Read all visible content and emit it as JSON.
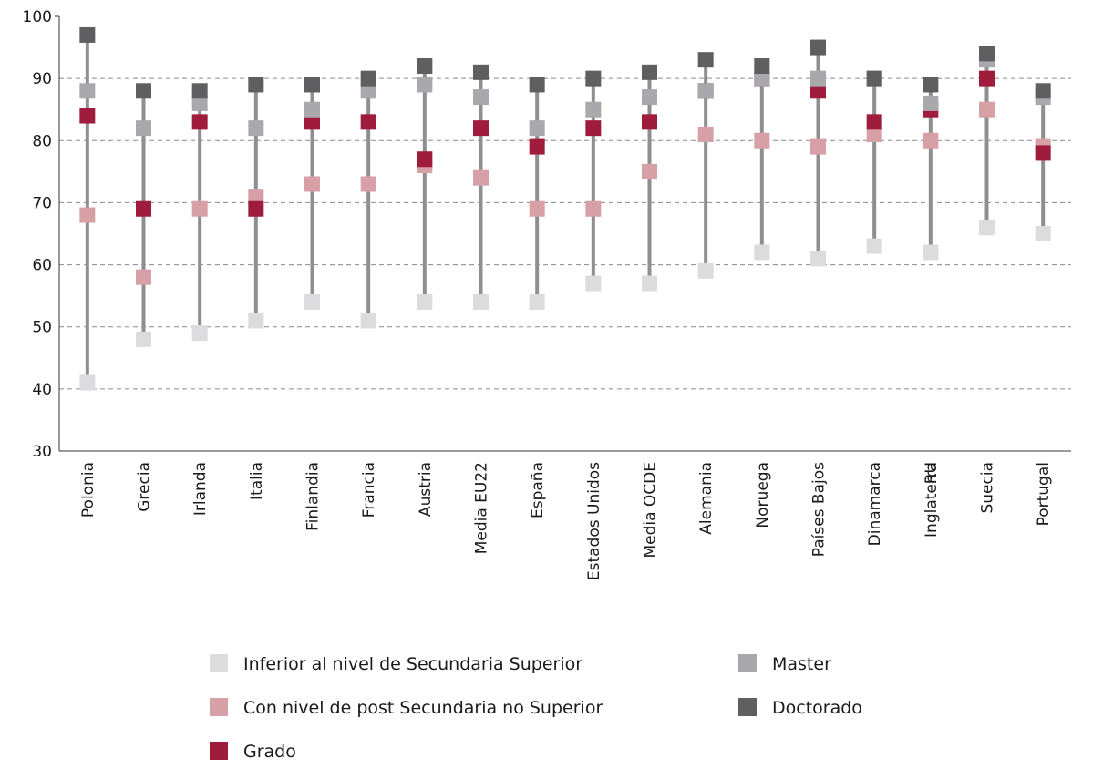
{
  "chart_data": {
    "type": "scatter",
    "title": "",
    "xlabel": "",
    "ylabel": "",
    "ylim": [
      30,
      100
    ],
    "yticks": [
      30,
      40,
      50,
      60,
      70,
      80,
      90,
      100
    ],
    "grid": true,
    "legend_placement": "bottom",
    "categories": [
      "Polonia",
      "Grecia",
      "Irlanda",
      "Italia",
      "Finlandia",
      "Francia",
      "Austria",
      "Media EU22",
      "España",
      "Estados Unidos",
      "Media OCDE",
      "Alemania",
      "Noruega",
      "Países Bajos",
      "Dinamarca",
      "Inglaterra",
      "RU",
      "Suecia",
      "Portugal"
    ],
    "category_slots": [
      0,
      1,
      2,
      3,
      4,
      5,
      6,
      7,
      8,
      9,
      10,
      11,
      12,
      13,
      14,
      15,
      15,
      16,
      17
    ],
    "series": [
      {
        "name": "Inferior al nivel de Secundaria Superior",
        "color": "#dcdcde",
        "values": [
          41,
          48,
          49,
          51,
          54,
          51,
          54,
          54,
          54,
          57,
          57,
          59,
          62,
          61,
          63,
          62,
          62,
          66,
          65
        ]
      },
      {
        "name": "Con nivel de post Secundaria no Superior",
        "color": "#d7a0a6",
        "values": [
          68,
          58,
          69,
          71,
          73,
          73,
          76,
          74,
          69,
          69,
          75,
          81,
          80,
          79,
          81,
          80,
          80,
          85,
          79
        ]
      },
      {
        "name": "Grado",
        "color": "#a01c3c",
        "values": [
          84,
          69,
          83,
          69,
          83,
          83,
          77,
          82,
          79,
          82,
          83,
          88,
          90,
          88,
          83,
          85,
          85,
          90,
          78
        ]
      },
      {
        "name": "Master",
        "color": "#a9a9ad",
        "values": [
          88,
          82,
          86,
          82,
          85,
          88,
          89,
          87,
          82,
          85,
          87,
          88,
          90,
          90,
          90,
          86,
          86,
          93,
          87
        ]
      },
      {
        "name": "Doctorado",
        "color": "#5f5f62",
        "values": [
          97,
          88,
          88,
          89,
          89,
          90,
          92,
          91,
          89,
          90,
          91,
          93,
          92,
          95,
          90,
          89,
          89,
          94,
          88
        ]
      }
    ]
  }
}
